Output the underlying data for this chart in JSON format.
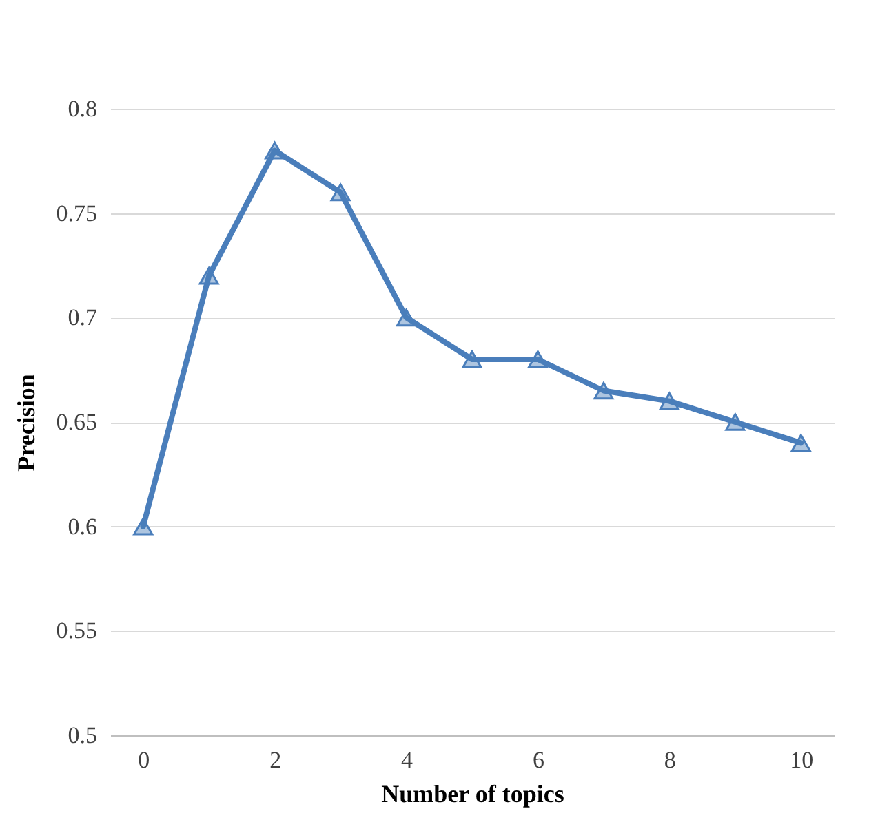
{
  "chart_data": {
    "type": "line",
    "xlabel": "Number of topics",
    "ylabel": "Precision",
    "x": [
      0,
      1,
      2,
      3,
      4,
      5,
      6,
      7,
      8,
      9,
      10
    ],
    "series": [
      {
        "color": "#4a7ebb",
        "values": [
          0.6,
          0.72,
          0.78,
          0.76,
          0.7,
          0.68,
          0.68,
          0.665,
          0.66,
          0.65,
          0.64
        ]
      }
    ],
    "xlim": [
      -0.5,
      10.5
    ],
    "xticks": [
      0,
      2,
      4,
      6,
      8,
      10
    ],
    "ylim": [
      0.5,
      0.8
    ],
    "yticks": [
      0.5,
      0.55,
      0.6,
      0.65,
      0.7,
      0.75,
      0.8
    ],
    "grid": "y",
    "marker": "triangle",
    "line_style": "solid"
  }
}
